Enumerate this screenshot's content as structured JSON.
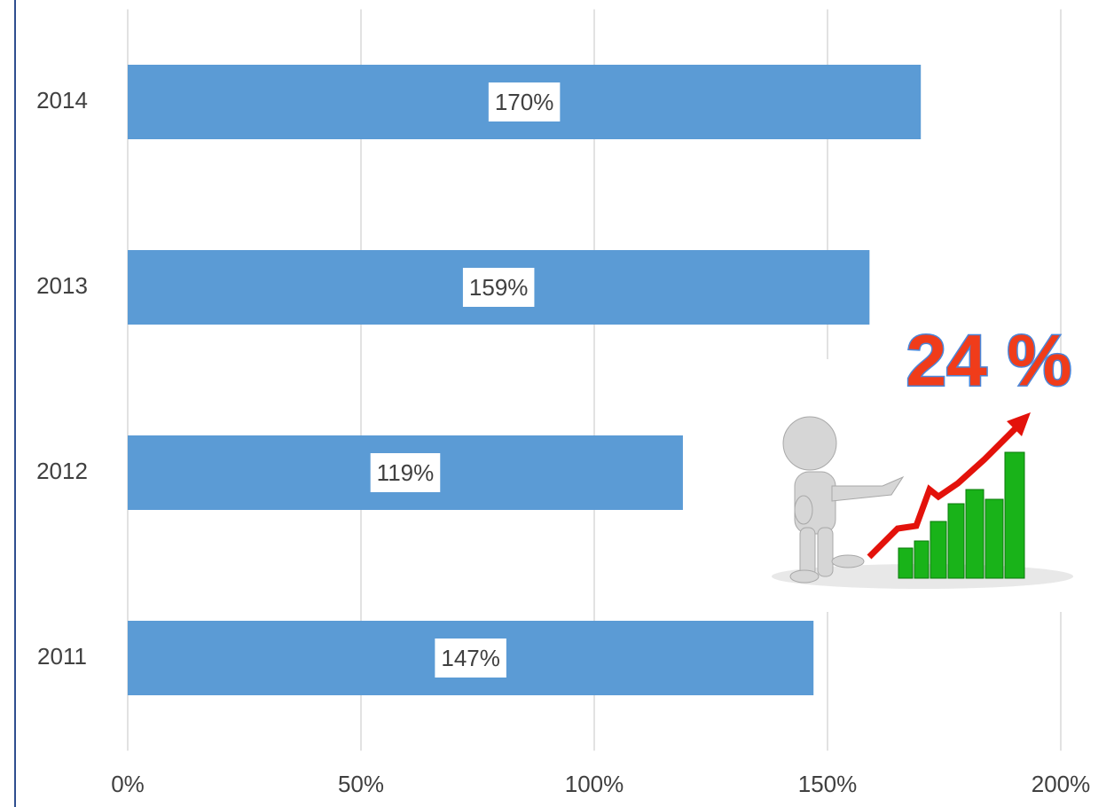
{
  "chart_data": {
    "type": "bar",
    "orientation": "horizontal",
    "categories": [
      "2011",
      "2012",
      "2013",
      "2014"
    ],
    "values": [
      147,
      119,
      159,
      170
    ],
    "value_labels": [
      "147%",
      "119%",
      "159%",
      "170%"
    ],
    "color": "#5b9bd5",
    "xlim": [
      0,
      200
    ],
    "xticks": [
      {
        "value": 0,
        "label": "0%"
      },
      {
        "value": 50,
        "label": "50%"
      },
      {
        "value": 100,
        "label": "100%"
      },
      {
        "value": 150,
        "label": "150%"
      },
      {
        "value": 200,
        "label": "200%"
      }
    ],
    "grid": true,
    "annotation": "24 %"
  }
}
